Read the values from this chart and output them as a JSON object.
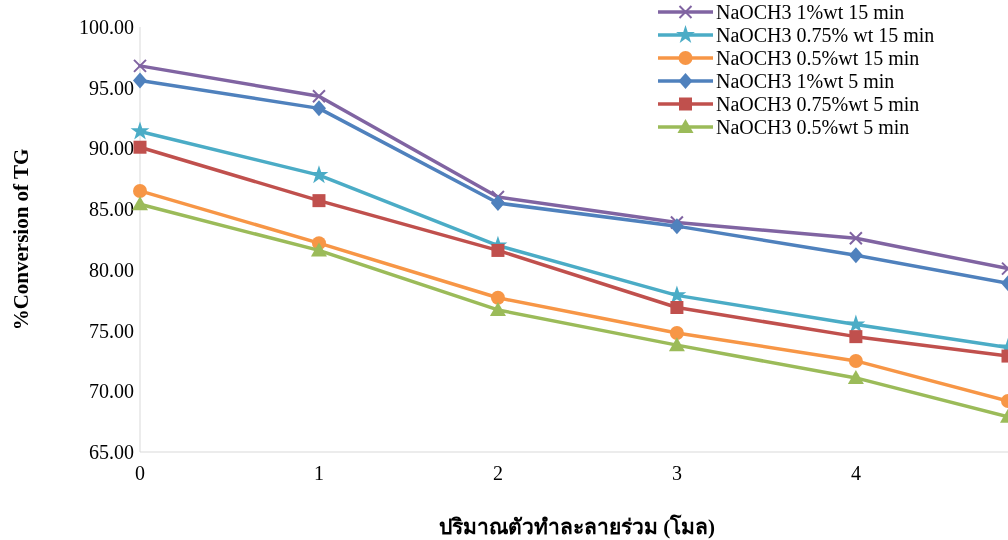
{
  "chart_data": {
    "type": "line",
    "xlabel": "ปริมาณตัวทำละลายร่วม (โมล)",
    "ylabel": "%Conversion of TG",
    "x": [
      0,
      1,
      2,
      3,
      4,
      4.85
    ],
    "xlim": [
      0,
      4.85
    ],
    "xticks": [
      0,
      1,
      2,
      3,
      4
    ],
    "ylim": [
      65,
      100
    ],
    "yticks": [
      {
        "value": 65,
        "label": "65.00"
      },
      {
        "value": 70,
        "label": "70.00"
      },
      {
        "value": 75,
        "label": "75.00"
      },
      {
        "value": 80,
        "label": "80.00"
      },
      {
        "value": 85,
        "label": "85.00"
      },
      {
        "value": 90,
        "label": "90.00"
      },
      {
        "value": 95,
        "label": "95.00"
      },
      {
        "value": 100,
        "label": "100.00"
      }
    ],
    "grid": false,
    "legend": "top right",
    "line_style": "solid",
    "series": [
      {
        "name": "NaOCH3 1%wt 15 min",
        "color": "#8064a2",
        "marker": "cross",
        "values": [
          96.8,
          94.3,
          86.0,
          83.9,
          82.6,
          80.1
        ]
      },
      {
        "name": "NaOCH3 0.75% wt 15 min",
        "color": "#4bacc6",
        "marker": "star",
        "values": [
          91.4,
          87.8,
          82.0,
          77.9,
          75.5,
          73.6
        ]
      },
      {
        "name": "NaOCH3 0.5%wt 15 min",
        "color": "#f79646",
        "marker": "circle",
        "values": [
          86.5,
          82.2,
          77.7,
          74.8,
          72.5,
          69.2
        ]
      },
      {
        "name": "NaOCH3 1%wt 5 min",
        "color": "#4f81bd",
        "marker": "diamond",
        "values": [
          95.6,
          93.3,
          85.5,
          83.6,
          81.2,
          78.9
        ]
      },
      {
        "name": "NaOCH3 0.75%wt 5 min",
        "color": "#c0504d",
        "marker": "square",
        "values": [
          90.1,
          85.7,
          81.6,
          76.9,
          74.5,
          72.9
        ]
      },
      {
        "name": "NaOCH3 0.5%wt 5 min",
        "color": "#9bbb59",
        "marker": "triangle",
        "values": [
          85.4,
          81.6,
          76.7,
          73.8,
          71.1,
          67.9
        ]
      }
    ]
  }
}
